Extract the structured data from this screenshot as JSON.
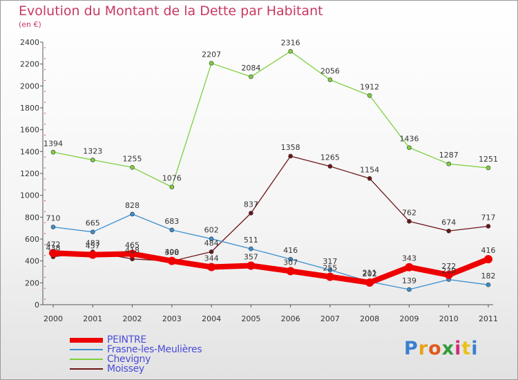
{
  "title": "Evolution du Montant de la Dette par Habitant",
  "subtitle": "(en €)",
  "logo": "Proxiti",
  "chart_data": {
    "type": "line",
    "x": [
      "2000",
      "2001",
      "2002",
      "2003",
      "2004",
      "2005",
      "2006",
      "2007",
      "2008",
      "2009",
      "2010",
      "2011"
    ],
    "ylim": [
      0,
      2400
    ],
    "yticks": [
      0,
      200,
      400,
      600,
      800,
      1000,
      1200,
      1400,
      1600,
      1800,
      2000,
      2200,
      2400
    ],
    "grid": false,
    "legend_position": "bottom-left",
    "series": [
      {
        "name": "PEINTRE",
        "color": "#ee0000",
        "values": [
          472,
          457,
          465,
          400,
          344,
          357,
          307,
          255,
          202,
          343,
          272,
          416
        ]
      },
      {
        "name": "Frasne-les-Meulières",
        "color": "#3a8fd0",
        "values": [
          710,
          665,
          828,
          683,
          602,
          511,
          416,
          317,
          211,
          139,
          230,
          182
        ]
      },
      {
        "name": "Chevigny",
        "color": "#7ed03e",
        "values": [
          1394,
          1323,
          1255,
          1076,
          2207,
          2084,
          2316,
          2056,
          1912,
          1436,
          1287,
          1251
        ]
      },
      {
        "name": "Moissey",
        "color": "#6b1518",
        "values": [
          438,
          483,
          418,
          398,
          484,
          837,
          1358,
          1265,
          1154,
          762,
          674,
          717
        ]
      }
    ]
  }
}
